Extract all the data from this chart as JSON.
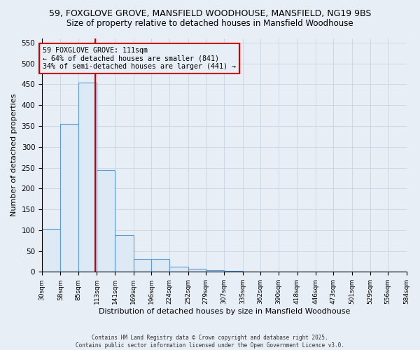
{
  "title1": "59, FOXGLOVE GROVE, MANSFIELD WOODHOUSE, MANSFIELD, NG19 9BS",
  "title2": "Size of property relative to detached houses in Mansfield Woodhouse",
  "xlabel": "Distribution of detached houses by size in Mansfield Woodhouse",
  "ylabel": "Number of detached properties",
  "bins": [
    30,
    58,
    85,
    113,
    141,
    169,
    196,
    224,
    252,
    279,
    307,
    335,
    362,
    390,
    418,
    446,
    473,
    501,
    529,
    556,
    584
  ],
  "counts": [
    103,
    355,
    455,
    245,
    88,
    30,
    30,
    13,
    8,
    4,
    2,
    1,
    1,
    0,
    0,
    0,
    0,
    0,
    0,
    0
  ],
  "property_size": 111,
  "bar_facecolor": "#ddeaf5",
  "bar_edgecolor": "#5b9bd5",
  "vline_color": "#cc0000",
  "annotation_text": "59 FOXGLOVE GROVE: 111sqm\n← 64% of detached houses are smaller (841)\n34% of semi-detached houses are larger (441) →",
  "ylim": [
    0,
    560
  ],
  "yticks": [
    0,
    50,
    100,
    150,
    200,
    250,
    300,
    350,
    400,
    450,
    500,
    550
  ],
  "footer": "Contains HM Land Registry data © Crown copyright and database right 2025.\nContains public sector information licensed under the Open Government Licence v3.0.",
  "bg_color": "#e8eef5",
  "plot_bg_color": "#e8eef5",
  "grid_color": "#c8d4e0",
  "title1_fontsize": 9,
  "title2_fontsize": 8.5
}
